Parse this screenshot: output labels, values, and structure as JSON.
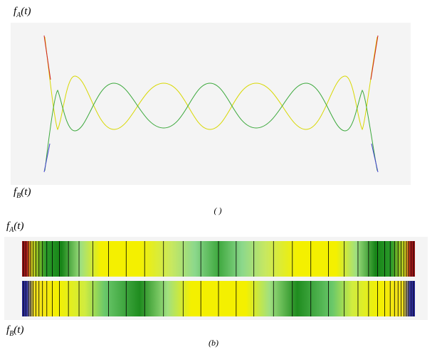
{
  "figure_a": {
    "top_label_main": "f",
    "top_label_sub": "A",
    "top_label_arg": "(t)",
    "bottom_label_main": "f",
    "bottom_label_sub": "B",
    "bottom_label_arg": "(t)",
    "caption": "( )"
  },
  "figure_b": {
    "top_label_main": "f",
    "top_label_sub": "A",
    "top_label_arg": "(t)",
    "bottom_label_main": "f",
    "bottom_label_sub": "B",
    "bottom_label_arg": "(t)",
    "caption": "(b)"
  },
  "colors": {
    "panel_bg": "#f4f4f4",
    "yellow": "#f5f000",
    "green": "#1e8c1e",
    "red": "#c0221a",
    "blue": "#2a2ab0"
  }
}
